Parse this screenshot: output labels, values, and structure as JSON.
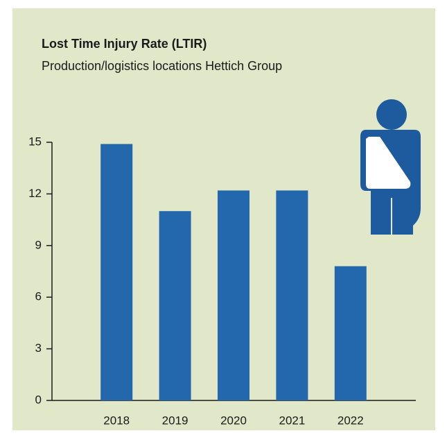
{
  "chart_data": {
    "type": "bar",
    "title": "Lost Time Injury Rate (LTIR)",
    "subtitle": "Production/logistics locations Hettich Group",
    "categories": [
      "2018",
      "2019",
      "2020",
      "2021",
      "2022"
    ],
    "values": [
      14.9,
      11.0,
      12.2,
      12.2,
      7.8
    ],
    "color": "#2368ad",
    "ylim": [
      0,
      15
    ],
    "yticks": [
      0,
      3,
      6,
      9,
      12,
      15
    ],
    "grid": false
  }
}
